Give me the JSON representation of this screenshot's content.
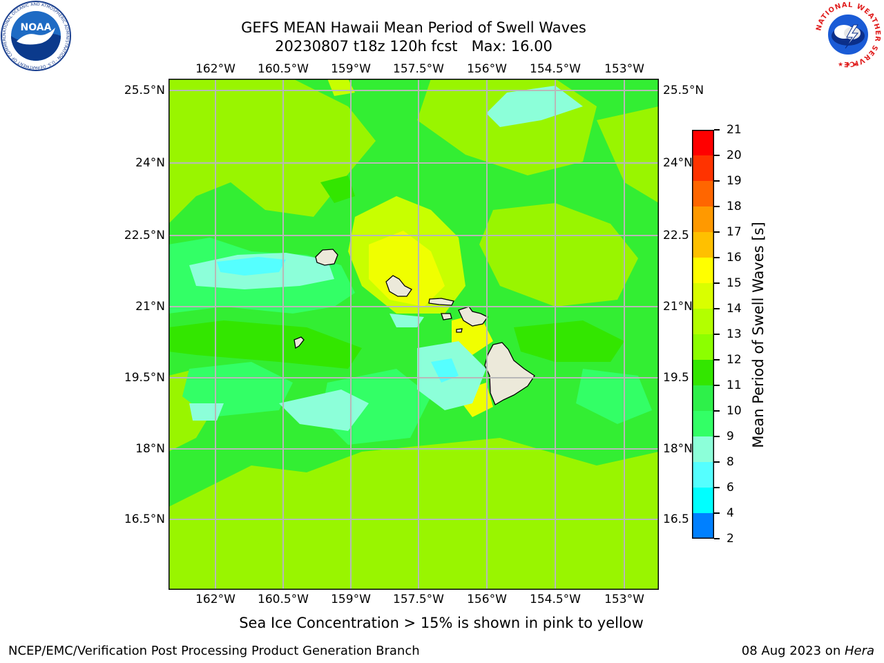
{
  "title": {
    "line1": "GEFS MEAN Hawaii Mean Period of Swell Waves",
    "line2": "20230807 t18z 120h fcst   Max: 16.00"
  },
  "logos": {
    "noaa": {
      "text": "NOAA",
      "ring_text": "NATIONAL OCEANIC AND ATMOSPHERIC ADMINISTRATION · U.S. DEPARTMENT OF COMMERCE ·"
    },
    "nws": {
      "ring_text": "NATIONAL WEATHER SERVICE",
      "stars": "★ ★ ★"
    }
  },
  "axes": {
    "lon_labels": [
      "162°W",
      "160.5°W",
      "159°W",
      "157.5°W",
      "156°W",
      "154.5°W",
      "153°W"
    ],
    "lat_labels_left": [
      "25.5°N",
      "24°N",
      "22.5°N",
      "21°N",
      "19.5°N",
      "18°N",
      "16.5°N"
    ],
    "lat_labels_right": [
      "25.5°N",
      "24°N",
      "22.5",
      "21°N",
      "19.5",
      "18°N",
      "16.5"
    ]
  },
  "colorbar": {
    "label": "Mean Period of Swell Waves [s]",
    "ticks": [
      "21",
      "20",
      "19",
      "18",
      "17",
      "16",
      "15",
      "14",
      "13",
      "12",
      "11",
      "10",
      "9",
      "8",
      "6",
      "4",
      "2"
    ],
    "colors": [
      "#ff0000",
      "#ff3300",
      "#ff6600",
      "#ff9900",
      "#ffc000",
      "#ffff00",
      "#d9ff00",
      "#b3ff00",
      "#8cff00",
      "#33e600",
      "#2ef04a",
      "#33ff66",
      "#8cffd9",
      "#55ffff",
      "#00ffff",
      "#0080ff",
      "#0000ff"
    ]
  },
  "map": {
    "background_color": "#33ee33",
    "islands": [
      "Niihau",
      "Kauai",
      "Oahu",
      "Molokai",
      "Lanai",
      "Maui",
      "Kahoolawe",
      "Hawaii"
    ]
  },
  "caption": "Sea Ice Concentration > 15% is shown in pink to yellow",
  "footer": {
    "left": "NCEP/EMC/Verification Post Processing Product Generation Branch",
    "right_prefix": "08 Aug 2023 on ",
    "right_machine": "Hera"
  }
}
